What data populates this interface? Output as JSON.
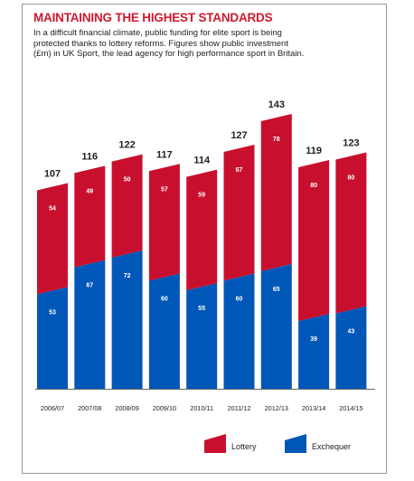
{
  "header": {
    "title": "MAINTAINING THE HIGHEST STANDARDS",
    "subtitle": "In a difficult financial climate, public funding for elite sport is being protected thanks to lottery reforms. Figures show public investment (£m) in UK Sport, the lead agency for high performance sport in Britain."
  },
  "colors": {
    "lottery": "#c8102e",
    "exchequer": "#0057b8",
    "title": "#cc1a2f"
  },
  "chart_data": {
    "type": "bar",
    "stacked": true,
    "title": "MAINTAINING THE HIGHEST STANDARDS",
    "xlabel": "",
    "ylabel": "",
    "categories": [
      "2006/07",
      "2007/08",
      "2008/09",
      "2009/10",
      "2010/11",
      "2011/12",
      "2012/13",
      "2013/14",
      "2014/15"
    ],
    "series": [
      {
        "name": "Exchequer",
        "color": "#0057b8",
        "values": [
          53,
          67,
          72,
          60,
          55,
          60,
          65,
          39,
          43
        ]
      },
      {
        "name": "Lottery",
        "color": "#c8102e",
        "values": [
          54,
          49,
          50,
          57,
          59,
          67,
          78,
          80,
          80
        ]
      }
    ],
    "totals": [
      107,
      116,
      122,
      117,
      114,
      127,
      143,
      119,
      123
    ],
    "ylim": [
      0,
      143
    ],
    "grid": false,
    "legend": {
      "position": "bottom-right",
      "entries": [
        "Lottery",
        "Exchequer"
      ]
    }
  }
}
